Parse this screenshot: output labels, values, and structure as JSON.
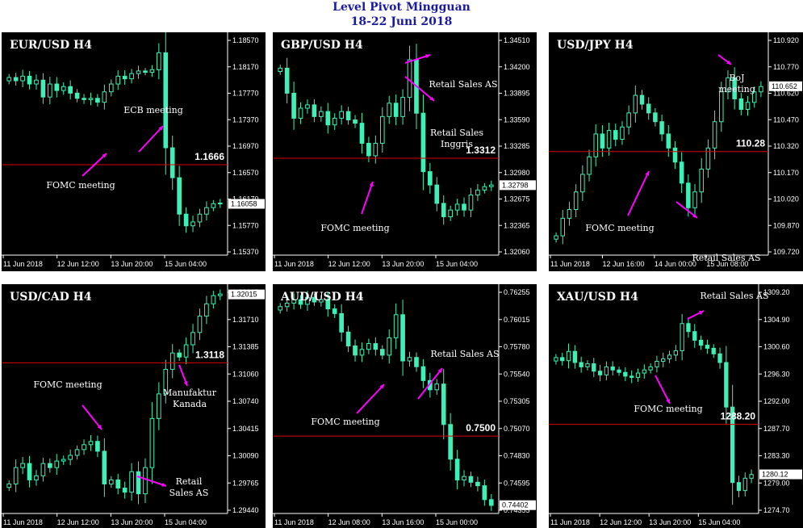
{
  "page": {
    "title": "Level Pivot Mingguan",
    "subtitle": "18-22 Juni 2018"
  },
  "colors": {
    "background": "#000000",
    "candle": "#3ef0b8",
    "pivot_line": "#e00000",
    "arrow": "#ff00ff",
    "text": "#ffffff",
    "title_text": "#1a1aa0",
    "current_price_label_bg": "#ffffff"
  },
  "chart_data": [
    {
      "type": "candlestick",
      "title": "EUR/USD  H4",
      "y_ticks": [
        "1.18570",
        "1.18170",
        "1.17770",
        "1.17370",
        "1.16970",
        "1.16570",
        "1.16170",
        "1.15770",
        "1.15370"
      ],
      "ylim": [
        1.1527,
        1.1867
      ],
      "x_ticks": [
        "11 Jun 2018",
        "12 Jun 12:00",
        "13 Jun 20:00",
        "15 Jun 04:00"
      ],
      "pivot": {
        "value": 1.1666,
        "label": "1.1666"
      },
      "current_price": {
        "value": 1.16058,
        "label": "1.16058"
      },
      "closes": [
        1.18,
        1.1795,
        1.1802,
        1.179,
        1.1796,
        1.177,
        1.179,
        1.178,
        1.1786,
        1.1776,
        1.1768,
        1.1766,
        1.1768,
        1.1762,
        1.1778,
        1.179,
        1.1802,
        1.1798,
        1.1806,
        1.181,
        1.1808,
        1.1812,
        1.1838,
        1.1692,
        1.1646,
        1.159,
        1.1572,
        1.1578,
        1.159,
        1.16,
        1.1606,
        1.1607
      ],
      "annotations": [
        "ECB meeting",
        "FOMC meeting"
      ]
    },
    {
      "type": "candlestick",
      "title": "GBP/USD  H4",
      "y_ticks": [
        "1.34510",
        "1.34200",
        "1.33895",
        "1.33590",
        "1.33285",
        "1.32980",
        "1.32675",
        "1.32365",
        "1.32060"
      ],
      "ylim": [
        1.3196,
        1.3461
      ],
      "x_ticks": [
        "11 Jun 2018",
        "12 Jun 12:00",
        "13 Jun 20:00",
        "15 Jun 04:00"
      ],
      "pivot": {
        "value": 1.3312,
        "label": "1.3312"
      },
      "current_price": {
        "value": 1.32798,
        "label": "1.32798"
      },
      "closes": [
        1.342,
        1.339,
        1.336,
        1.3372,
        1.3376,
        1.3362,
        1.3368,
        1.3352,
        1.336,
        1.3368,
        1.3358,
        1.3354,
        1.333,
        1.3315,
        1.333,
        1.3362,
        1.3378,
        1.3362,
        1.3385,
        1.343,
        1.3366,
        1.3296,
        1.328,
        1.3258,
        1.3242,
        1.325,
        1.3257,
        1.325,
        1.3268,
        1.3274,
        1.3278,
        1.328
      ],
      "annotations": [
        "Retail Sales  AS",
        "Retail Sales Inggris",
        "FOMC meeting"
      ]
    },
    {
      "type": "candlestick",
      "title": "USD/JPY  H4",
      "y_ticks": [
        "110.920",
        "110.770",
        "110.620",
        "110.470",
        "110.320",
        "110.170",
        "110.020",
        "109.870",
        "109.720"
      ],
      "ylim": [
        109.69,
        110.95
      ],
      "x_ticks": [
        "11 Jun 2018",
        "12 Jun 16:00",
        "14 Jun 00:00",
        "15 Jun 08:00"
      ],
      "pivot": {
        "value": 110.28,
        "label": "110.28"
      },
      "current_price": {
        "value": 110.652,
        "label": "110.652"
      },
      "closes": [
        109.8,
        109.9,
        109.95,
        110.05,
        110.15,
        110.25,
        110.38,
        110.3,
        110.4,
        110.35,
        110.42,
        110.5,
        110.6,
        110.55,
        110.5,
        110.45,
        110.38,
        110.3,
        110.22,
        110.1,
        109.96,
        110.05,
        110.18,
        110.3,
        110.45,
        110.62,
        110.7,
        110.58,
        110.52,
        110.56,
        110.62,
        110.65
      ],
      "annotations": [
        "BoJ meeting",
        "FOMC meeting",
        "Retail Sales AS"
      ]
    },
    {
      "type": "candlestick",
      "title": "USD/CAD  H4",
      "y_ticks": [
        "1.32015",
        "1.31710",
        "1.31385",
        "1.31060",
        "1.30740",
        "1.30415",
        "1.30090",
        "1.29765",
        "1.29440"
      ],
      "ylim": [
        1.2934,
        1.3212
      ],
      "x_ticks": [
        "11 Jun 2018",
        "12 Jun 12:00",
        "13 Jun 20:00",
        "15 Jun 04:00"
      ],
      "pivot": {
        "value": 1.3118,
        "label": "1.3118"
      },
      "current_price": {
        "value": 1.32015,
        "label": "1.32015"
      },
      "closes": [
        1.297,
        1.299,
        1.2995,
        1.2975,
        1.298,
        1.2995,
        1.299,
        1.2998,
        1.3,
        1.3005,
        1.3012,
        1.3018,
        1.3022,
        1.301,
        1.297,
        1.2975,
        1.2965,
        1.296,
        1.2985,
        1.2958,
        1.299,
        1.305,
        1.308,
        1.311,
        1.313,
        1.3125,
        1.314,
        1.3155,
        1.3175,
        1.319,
        1.32,
        1.3202
      ],
      "annotations": [
        "FOMC meeting",
        "Manufaktur Kanada",
        "Retail Sales  AS"
      ]
    },
    {
      "type": "candlestick",
      "title": "AUD/USD  H4",
      "y_ticks": [
        "0.76255",
        "0.76015",
        "0.75780",
        "0.75540",
        "0.75305",
        "0.75070",
        "0.74830",
        "0.74595",
        "0.74355"
      ],
      "ylim": [
        0.7433,
        0.763
      ],
      "x_ticks": [
        "11 Jun 2018",
        "12 Jun 08:00",
        "13 Jun 16:00",
        "15 Jun 00:00"
      ],
      "pivot": {
        "value": 0.75,
        "label": "0.7500"
      },
      "current_price": {
        "value": 0.74402,
        "label": "0.74402"
      },
      "closes": [
        0.7612,
        0.7615,
        0.7618,
        0.7614,
        0.762,
        0.7616,
        0.7618,
        0.761,
        0.7606,
        0.759,
        0.7578,
        0.757,
        0.7575,
        0.758,
        0.7575,
        0.757,
        0.7585,
        0.7605,
        0.7565,
        0.7568,
        0.756,
        0.7548,
        0.754,
        0.7545,
        0.751,
        0.748,
        0.7462,
        0.7465,
        0.746,
        0.7457,
        0.7445,
        0.744
      ],
      "annotations": [
        "Retail Sales  AS",
        "FOMC meeting"
      ]
    },
    {
      "type": "candlestick",
      "title": "XAU/USD  H4",
      "y_ticks": [
        "1309.20",
        "1304.90",
        "1300.60",
        "1296.30",
        "1292.00",
        "1287.70",
        "1283.30",
        "1279.00",
        "1274.70"
      ],
      "ylim": [
        1273.8,
        1310.6
      ],
      "x_ticks": [
        "11 Jun 2018",
        "12 Jun 12:00",
        "13 Jun 20:00",
        "15 Jun 04:00"
      ],
      "pivot": {
        "value": 1288.2,
        "label": "1288.20"
      },
      "current_price": {
        "value": 1280.12,
        "label": "1280.12"
      },
      "closes": [
        1299.0,
        1298.5,
        1300.0,
        1298.2,
        1297.5,
        1298.0,
        1296.8,
        1296.2,
        1297.5,
        1297.0,
        1296.6,
        1296.0,
        1295.8,
        1296.5,
        1297.0,
        1297.5,
        1298.4,
        1298.8,
        1299.4,
        1300.1,
        1304.5,
        1303.2,
        1301.8,
        1301.0,
        1300.5,
        1299.6,
        1298.2,
        1291.0,
        1278.8,
        1277.5,
        1279.5,
        1280.1
      ],
      "annotations": [
        "Retail Sales AS",
        "FOMC meeting"
      ]
    }
  ]
}
